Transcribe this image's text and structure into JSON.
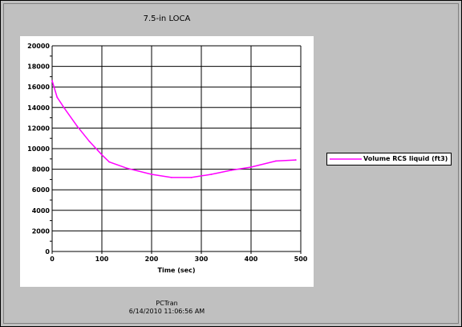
{
  "chart_data": {
    "type": "line",
    "title": "7.5-in LOCA",
    "xlabel": "Time (sec)",
    "ylabel": "",
    "xlim": [
      0,
      500
    ],
    "ylim": [
      0,
      20000
    ],
    "x_ticks": [
      0,
      100,
      200,
      300,
      400,
      500
    ],
    "y_ticks": [
      0,
      2000,
      4000,
      6000,
      8000,
      10000,
      12000,
      14000,
      16000,
      18000,
      20000
    ],
    "grid": true,
    "legend_position": "right",
    "series": [
      {
        "name": "Volume RCS liquid (ft3)",
        "color": "#ff00ff",
        "x": [
          0,
          10,
          25,
          50,
          75,
          100,
          115,
          150,
          200,
          240,
          280,
          320,
          360,
          400,
          450,
          490
        ],
        "y": [
          16600,
          15000,
          13900,
          12200,
          10700,
          9400,
          8700,
          8100,
          7500,
          7200,
          7200,
          7500,
          7900,
          8200,
          8800,
          8900
        ]
      }
    ]
  },
  "footer": {
    "line1": "PCTran",
    "line2": "6/14/2010 11:06:56 AM"
  }
}
